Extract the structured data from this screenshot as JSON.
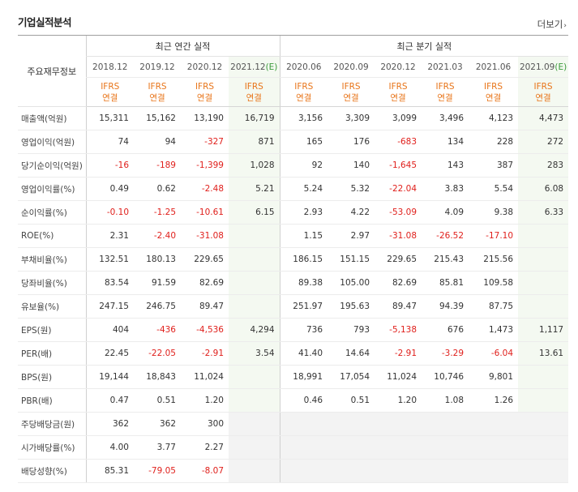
{
  "header": {
    "title": "기업실적분석",
    "more_label": "더보기",
    "more_icon": "chevron-right-icon"
  },
  "table": {
    "row_header_label": "주요재무정보",
    "annual_group_label": "최근 연간 실적",
    "quarter_group_label": "최근 분기 실적",
    "annual_periods": [
      "2018.12",
      "2019.12",
      "2020.12",
      "2021.12"
    ],
    "quarter_periods": [
      "2020.06",
      "2020.09",
      "2020.12",
      "2021.03",
      "2021.06",
      "2021.09"
    ],
    "estimate_mark": "(E)",
    "ifrs_line1": "IFRS",
    "ifrs_line2": "연결",
    "rows": [
      {
        "label": "매출액(억원)",
        "values": [
          "15,311",
          "15,162",
          "13,190",
          "16,719",
          "3,156",
          "3,309",
          "3,099",
          "3,496",
          "4,123",
          "4,473"
        ]
      },
      {
        "label": "영업이익(억원)",
        "values": [
          "74",
          "94",
          "-327",
          "871",
          "165",
          "176",
          "-683",
          "134",
          "228",
          "272"
        ]
      },
      {
        "label": "당기순이익(억원)",
        "values": [
          "-16",
          "-189",
          "-1,399",
          "1,028",
          "92",
          "140",
          "-1,645",
          "143",
          "387",
          "283"
        ]
      },
      {
        "label": "영업이익률(%)",
        "values": [
          "0.49",
          "0.62",
          "-2.48",
          "5.21",
          "5.24",
          "5.32",
          "-22.04",
          "3.83",
          "5.54",
          "6.08"
        ]
      },
      {
        "label": "순이익률(%)",
        "values": [
          "-0.10",
          "-1.25",
          "-10.61",
          "6.15",
          "2.93",
          "4.22",
          "-53.09",
          "4.09",
          "9.38",
          "6.33"
        ]
      },
      {
        "label": "ROE(%)",
        "values": [
          "2.31",
          "-2.40",
          "-31.08",
          "",
          "1.15",
          "2.97",
          "-31.08",
          "-26.52",
          "-17.10",
          ""
        ]
      },
      {
        "label": "부채비율(%)",
        "values": [
          "132.51",
          "180.13",
          "229.65",
          "",
          "186.15",
          "151.15",
          "229.65",
          "215.43",
          "215.56",
          ""
        ]
      },
      {
        "label": "당좌비율(%)",
        "values": [
          "83.54",
          "91.59",
          "82.69",
          "",
          "89.38",
          "105.00",
          "82.69",
          "85.81",
          "109.58",
          ""
        ]
      },
      {
        "label": "유보율(%)",
        "values": [
          "247.15",
          "246.75",
          "89.47",
          "",
          "251.97",
          "195.63",
          "89.47",
          "94.39",
          "87.75",
          ""
        ]
      },
      {
        "label": "EPS(원)",
        "values": [
          "404",
          "-436",
          "-4,536",
          "4,294",
          "736",
          "793",
          "-5,138",
          "676",
          "1,473",
          "1,117"
        ]
      },
      {
        "label": "PER(배)",
        "values": [
          "22.45",
          "-22.05",
          "-2.91",
          "3.54",
          "41.40",
          "14.64",
          "-2.91",
          "-3.29",
          "-6.04",
          "13.61"
        ]
      },
      {
        "label": "BPS(원)",
        "values": [
          "19,144",
          "18,843",
          "11,024",
          "",
          "18,991",
          "17,054",
          "11,024",
          "10,746",
          "9,801",
          ""
        ]
      },
      {
        "label": "PBR(배)",
        "values": [
          "0.47",
          "0.51",
          "1.20",
          "",
          "0.46",
          "0.51",
          "1.20",
          "1.08",
          "1.26",
          ""
        ]
      },
      {
        "label": "주당배당금(원)",
        "values": [
          "362",
          "362",
          "300",
          "",
          "",
          "",
          "",
          "",
          "",
          ""
        ]
      },
      {
        "label": "시가배당률(%)",
        "values": [
          "4.00",
          "3.77",
          "2.27",
          "",
          "",
          "",
          "",
          "",
          "",
          ""
        ]
      },
      {
        "label": "배당성향(%)",
        "values": [
          "85.31",
          "-79.05",
          "-8.07",
          "",
          "",
          "",
          "",
          "",
          "",
          ""
        ]
      }
    ],
    "section_starts": [
      3,
      6,
      9,
      13
    ],
    "empty_quarter_rows": [
      13,
      14,
      15
    ]
  },
  "colors": {
    "negative": "#e0201c",
    "ifrs": "#e8751a",
    "estimate_bg": "#f4f9f1",
    "estimate_mark": "#3a9a3a"
  }
}
